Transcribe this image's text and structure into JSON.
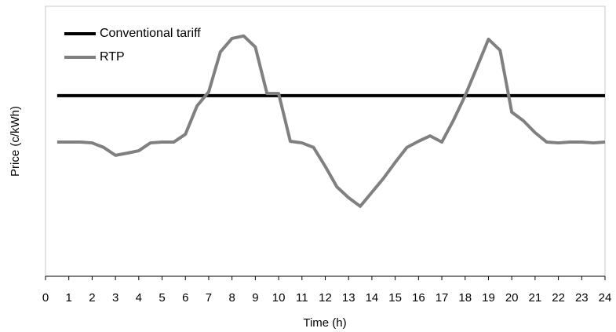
{
  "chart_data": {
    "type": "line",
    "xlabel": "Time (h)",
    "ylabel": "Price (c/kWh)",
    "xlim": [
      0,
      24
    ],
    "xticks": [
      0,
      1,
      2,
      3,
      4,
      5,
      6,
      7,
      8,
      9,
      10,
      11,
      12,
      13,
      14,
      15,
      16,
      17,
      18,
      19,
      20,
      21,
      22,
      23,
      24
    ],
    "ylim": [
      0,
      100
    ],
    "legend": "upper left",
    "series": [
      {
        "name": "Conventional tariff",
        "color": "#000000",
        "x": [
          0.5,
          24
        ],
        "values": [
          66.9,
          66.9
        ]
      },
      {
        "name": "RTP",
        "color": "#808080",
        "x": [
          0.5,
          1,
          1.5,
          2,
          2.5,
          3,
          3.5,
          4,
          4.5,
          5,
          5.5,
          6,
          6.5,
          7,
          7.5,
          8,
          8.5,
          9,
          9.5,
          10,
          10.5,
          11,
          11.5,
          12,
          12.5,
          13,
          13.5,
          14,
          14.5,
          15,
          15.5,
          16,
          16.5,
          17,
          17.5,
          18,
          18.5,
          19,
          19.5,
          20,
          20.5,
          21,
          21.5,
          22,
          22.5,
          23,
          23.5,
          24
        ],
        "values": [
          49.7,
          49.7,
          49.7,
          49.4,
          47.7,
          44.8,
          45.6,
          46.5,
          49.4,
          49.7,
          49.7,
          52.6,
          63.1,
          68.3,
          83.1,
          88.1,
          89.0,
          84.9,
          67.7,
          67.7,
          50.0,
          49.4,
          47.7,
          40.7,
          33.1,
          29.1,
          25.9,
          31.1,
          36.3,
          42.2,
          47.7,
          50.0,
          52.0,
          49.7,
          57.8,
          66.9,
          77.3,
          87.8,
          83.7,
          60.8,
          57.6,
          53.2,
          49.7,
          49.4,
          49.7,
          49.7,
          49.4,
          49.7
        ]
      }
    ]
  }
}
